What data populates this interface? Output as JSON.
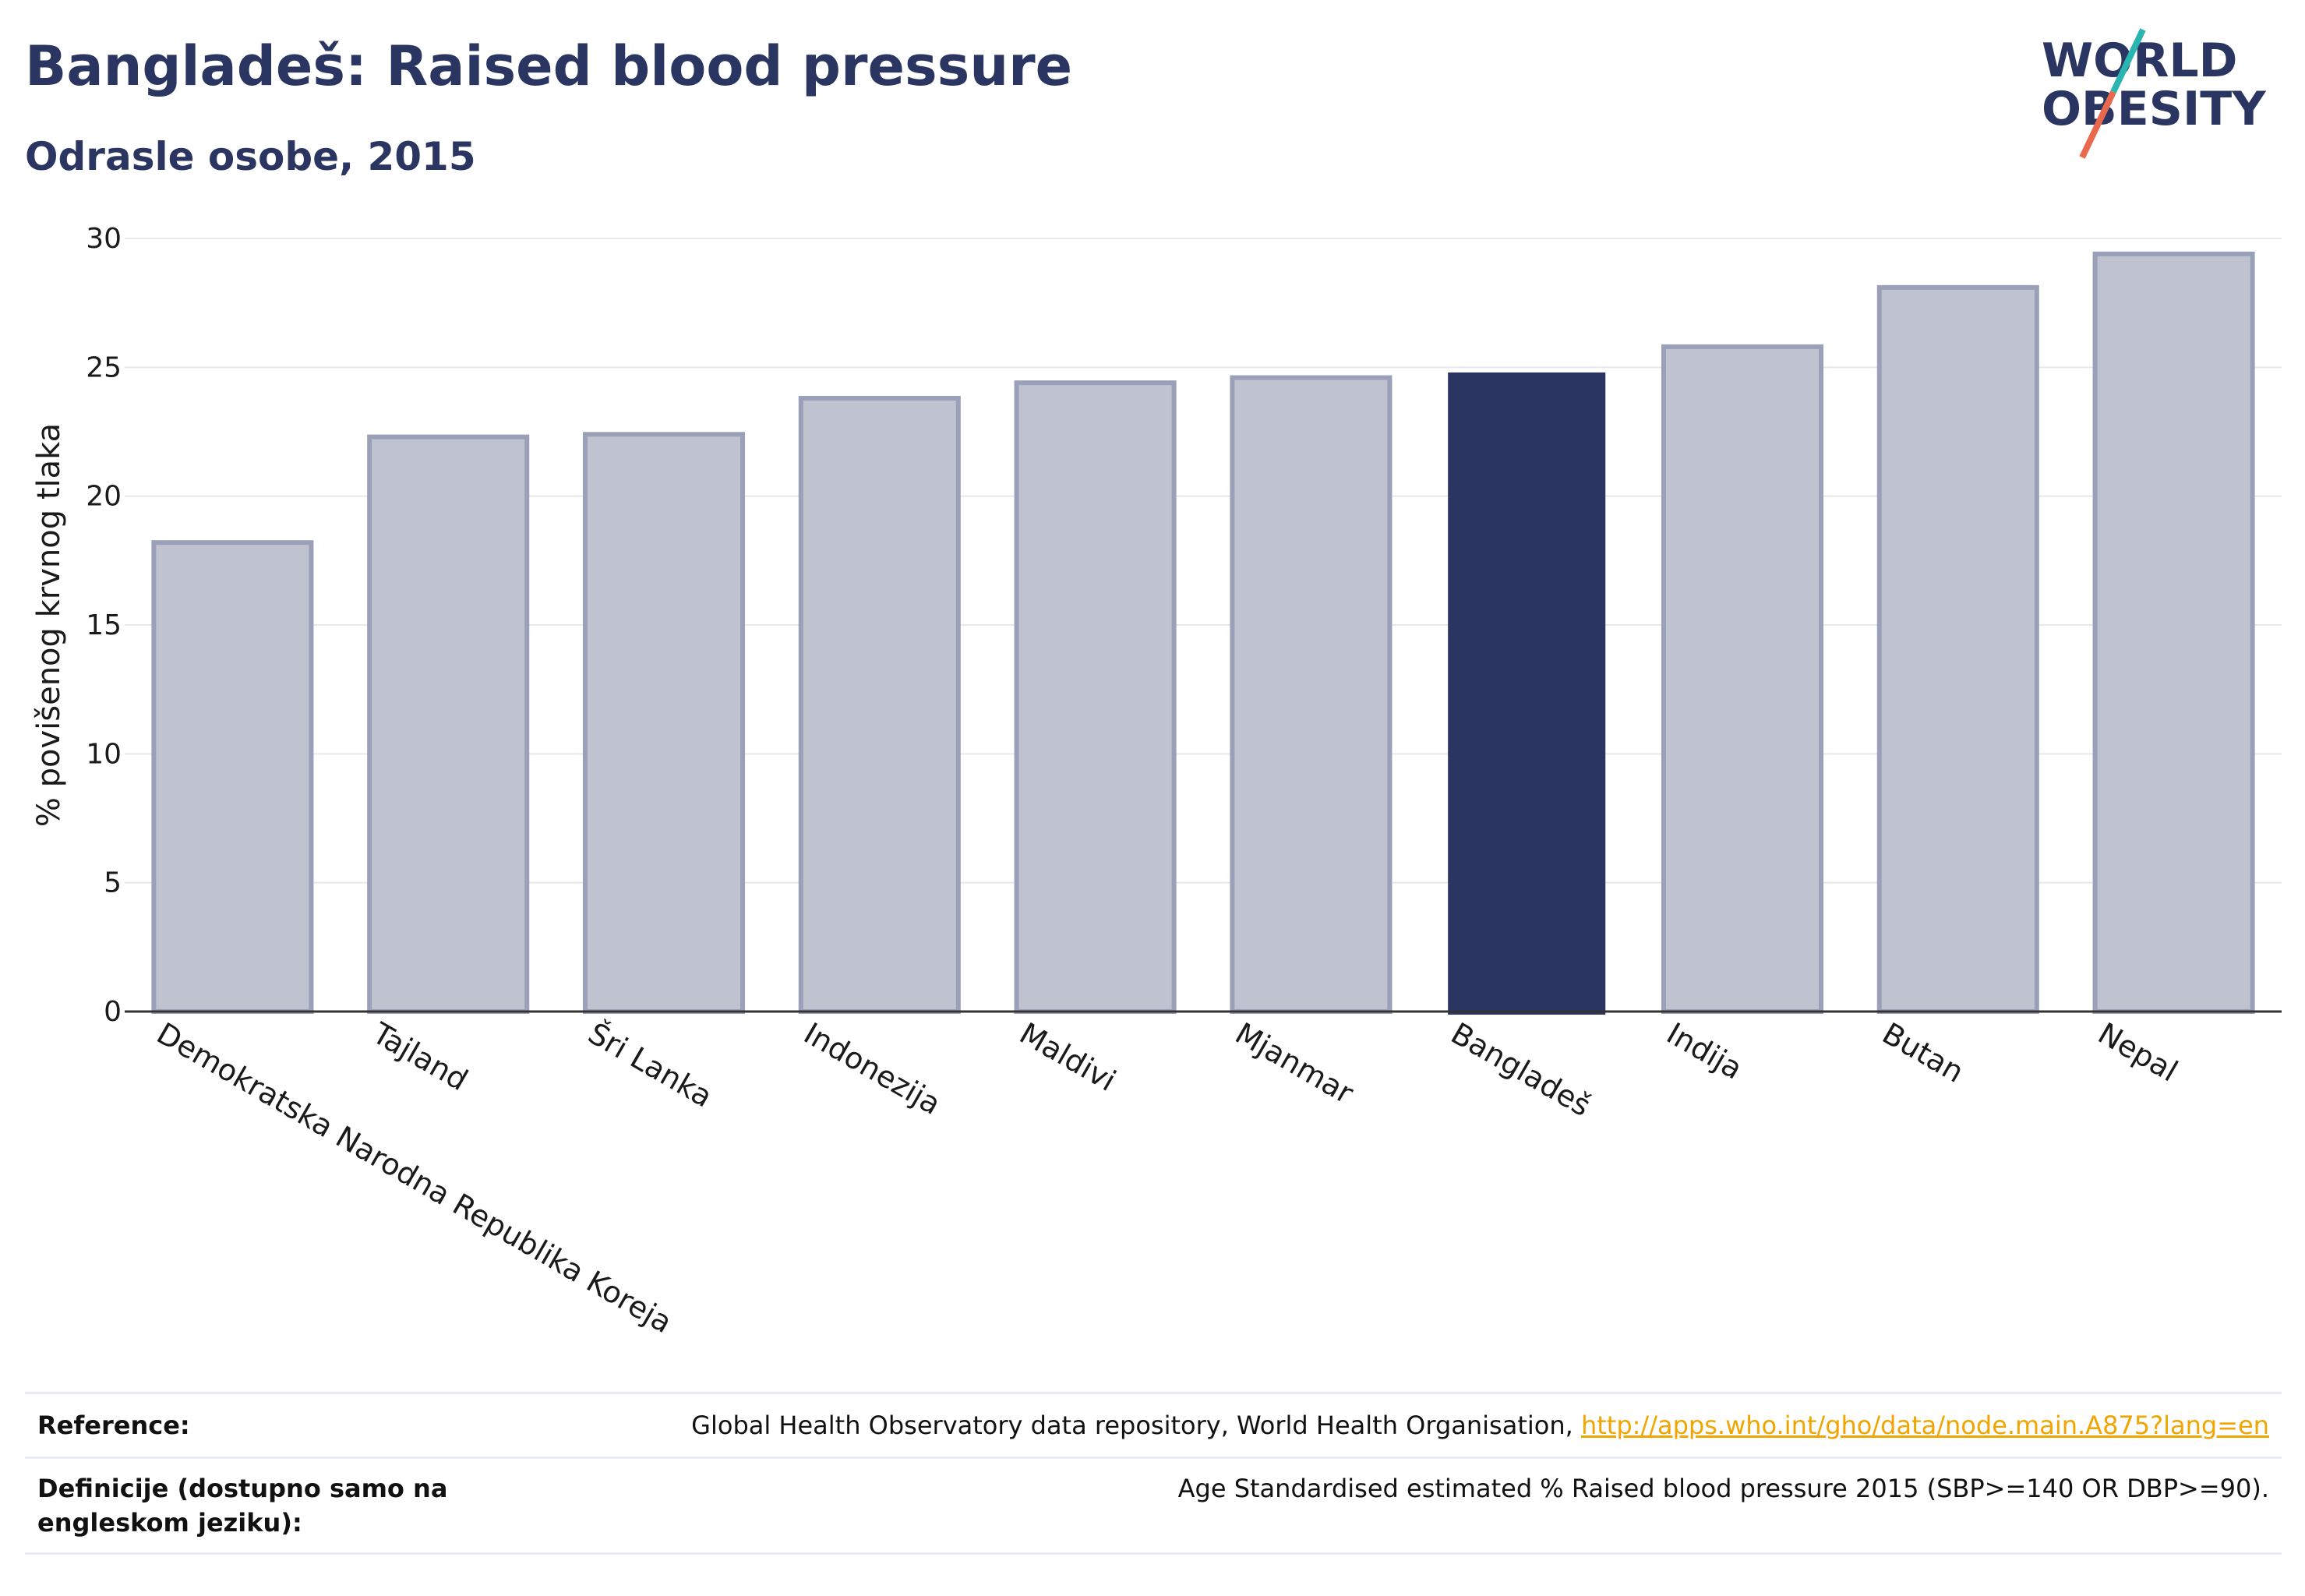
{
  "header": {
    "title": "Bangladeš: Raised blood pressure",
    "subtitle": "Odrasle osobe, 2015"
  },
  "logo": {
    "line1": "WORLD",
    "line2": "OBESITY",
    "colors": {
      "text": "#2a3561",
      "slash_top": "#2bb5b0",
      "slash_bottom": "#e8694e"
    }
  },
  "colors": {
    "highlight": "#2a3561",
    "bar": "#bfc3d0",
    "bar_border": "#9aa0b8",
    "grid": "#e6e8ee"
  },
  "chart_data": {
    "type": "bar",
    "title": "Bangladeš: Raised blood pressure",
    "subtitle": "Odrasle osobe, 2015",
    "xlabel": "",
    "ylabel": "% povišenog krvnog tlaka",
    "ylim": [
      0,
      30
    ],
    "yticks": [
      0,
      5,
      10,
      15,
      20,
      25,
      30
    ],
    "grid": true,
    "highlight": "Bangladeš",
    "categories": [
      "Demokratska Narodna Republika Koreja",
      "Tajland",
      "Šri Lanka",
      "Indonezija",
      "Maldivi",
      "Mjanmar",
      "Bangladeš",
      "Indija",
      "Butan",
      "Nepal"
    ],
    "values": [
      18.2,
      22.3,
      22.4,
      23.8,
      24.4,
      24.6,
      24.8,
      25.8,
      28.1,
      29.4
    ]
  },
  "footer": {
    "reference_label": "Reference:",
    "reference_text": "Global Health Observatory data repository, World Health Organisation,",
    "reference_link": "http://apps.who.int/gho/data/node.main.A875?lang=en",
    "definition_label": "Definicije (dostupno samo na engleskom jeziku):",
    "definition_text": "Age Standardised estimated % Raised blood pressure 2015 (SBP>=140 OR DBP>=90)."
  }
}
